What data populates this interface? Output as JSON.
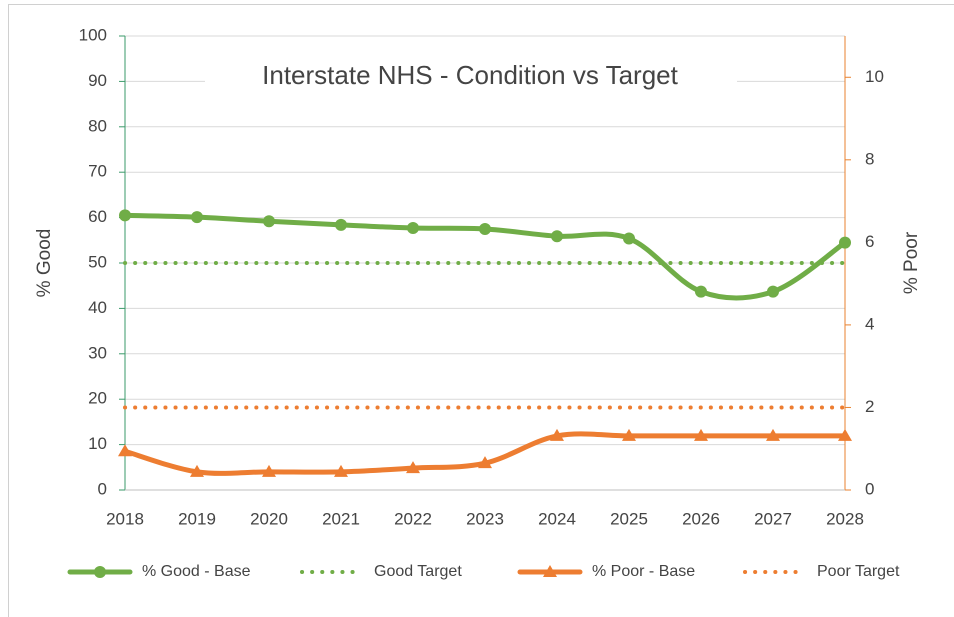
{
  "chart_data": {
    "type": "line",
    "title": "Interstate NHS - Condition vs Target",
    "ylabel": "% Good",
    "y2label": "% Poor",
    "categories": [
      "2018",
      "2019",
      "2020",
      "2021",
      "2022",
      "2023",
      "2024",
      "2025",
      "2026",
      "2027",
      "2028"
    ],
    "ylim": [
      0,
      100
    ],
    "yticks": [
      0,
      10,
      20,
      30,
      40,
      50,
      60,
      70,
      80,
      90,
      100
    ],
    "y2lim": [
      0,
      11
    ],
    "y2ticks": [
      0,
      2,
      4,
      6,
      8,
      10
    ],
    "grid": true,
    "legend": "bottom",
    "smooth": true,
    "ycolor": "#3a9a6a",
    "y2color": "#e8822f",
    "series": [
      {
        "name": "% Good - Base",
        "color": "#70ad47",
        "line_style": "solid",
        "marker": "circle",
        "values": [
          60.5,
          60.1,
          59.2,
          58.4,
          57.7,
          57.5,
          55.9,
          55.4,
          43.7,
          43.7,
          54.5
        ]
      },
      {
        "name": "Good Target",
        "color": "#70ad47",
        "line_style": "dotted",
        "marker": null,
        "values": [
          50,
          50,
          50,
          50,
          50,
          50,
          50,
          50,
          50,
          50,
          50
        ]
      },
      {
        "name": "% Poor - Base",
        "color": "#ed7d31",
        "line_style": "solid",
        "marker": "triangle",
        "axis": "y2",
        "values": [
          0.94,
          0.44,
          0.44,
          0.44,
          0.53,
          0.65,
          1.31,
          1.31,
          1.31,
          1.31,
          1.31
        ]
      },
      {
        "name": "Poor Target",
        "color": "#ed7d31",
        "line_style": "dotted",
        "marker": null,
        "axis": "y2",
        "values": [
          2,
          2,
          2,
          2,
          2,
          2,
          2,
          2,
          2,
          2,
          2
        ]
      }
    ]
  }
}
